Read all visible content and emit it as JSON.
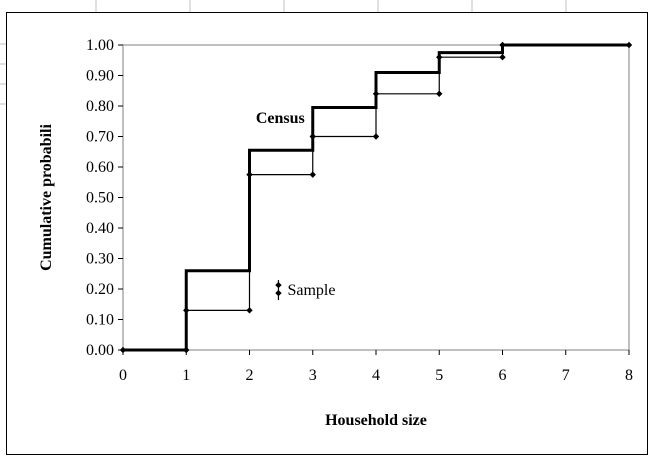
{
  "chart_data": {
    "type": "line",
    "step": true,
    "xlabel": "Household size",
    "ylabel": "Cumulative probabili",
    "xlim": [
      0,
      8
    ],
    "ylim": [
      0,
      1
    ],
    "xticks": [
      "0",
      "1",
      "2",
      "3",
      "4",
      "5",
      "6",
      "7",
      "8"
    ],
    "yticks": [
      "0.00",
      "0.10",
      "0.20",
      "0.30",
      "0.40",
      "0.50",
      "0.60",
      "0.70",
      "0.80",
      "0.90",
      "1.00"
    ],
    "grid": false,
    "series": [
      {
        "name": "Census",
        "style": "thick",
        "x": [
          0,
          1,
          1,
          2,
          2,
          3,
          3,
          4,
          4,
          5,
          5,
          6,
          6,
          8
        ],
        "y": [
          0,
          0,
          0.26,
          0.26,
          0.655,
          0.655,
          0.795,
          0.795,
          0.91,
          0.91,
          0.975,
          0.975,
          1.0,
          1.0
        ]
      },
      {
        "name": "Sample",
        "style": "thin-diamond-markers",
        "x": [
          0,
          1,
          1,
          2,
          2,
          3,
          3,
          4,
          4,
          5,
          5,
          6,
          6,
          8
        ],
        "y": [
          0,
          0,
          0.13,
          0.13,
          0.575,
          0.575,
          0.7,
          0.7,
          0.84,
          0.84,
          0.96,
          0.96,
          1.0,
          1.0
        ]
      }
    ],
    "annotations": [
      {
        "text": "Census",
        "x": 2.1,
        "y": 0.745
      },
      {
        "text": "Sample",
        "x": 2.6,
        "y": 0.18
      }
    ]
  },
  "colors": {
    "line": "#000000",
    "plot_border": "#808080",
    "sheet_grid": "#c0c0c0"
  }
}
